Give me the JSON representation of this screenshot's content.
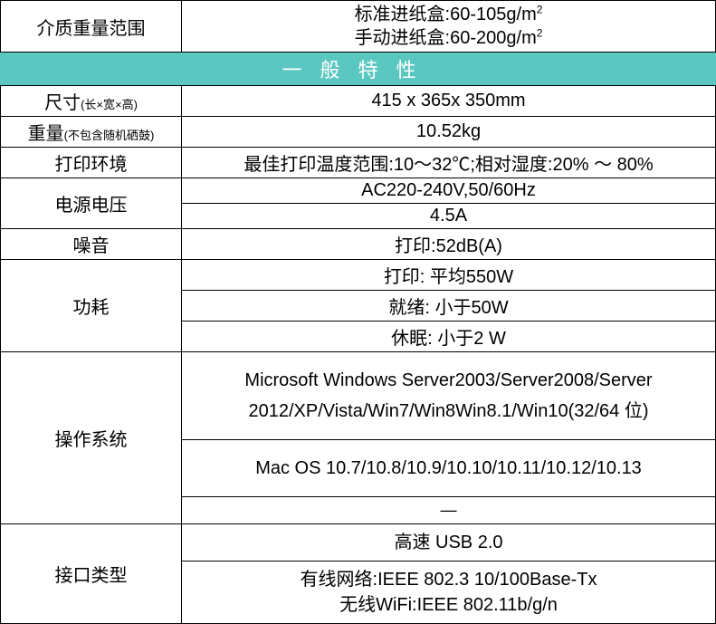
{
  "colors": {
    "border": "#000000",
    "header_bg": "#5bc7c1",
    "header_text": "#ffffff",
    "text": "#000000",
    "background": "#ffffff"
  },
  "layout": {
    "label_col_width": 200,
    "total_width": 791,
    "font_size_normal": 20,
    "font_size_sub": 13,
    "font_size_header": 22
  },
  "rows": {
    "media_weight": {
      "label": "介质重量范围",
      "value_line1_prefix": "标准进纸盒:60-105g/m",
      "value_line1_sup": "2",
      "value_line2_prefix": "手动进纸盒:60-200g/m",
      "value_line2_sup": "2"
    },
    "section_header": "一般特性",
    "dimensions": {
      "label_main": "尺寸",
      "label_sub": "(长×宽×高)",
      "value": "415 x 365x 350mm"
    },
    "weight": {
      "label_main": "重量",
      "label_sub": "(不包含随机硒鼓)",
      "value": "10.52kg"
    },
    "print_env": {
      "label": "打印环境",
      "value": "最佳打印温度范围:10～32℃;相对湿度:20% ～ 80%"
    },
    "power": {
      "label": "电源电压",
      "value1": "AC220-240V,50/60Hz",
      "value2": "4.5A"
    },
    "noise": {
      "label": "噪音",
      "value": "打印:52dB(A)"
    },
    "consumption": {
      "label": "功耗",
      "value1": "打印: 平均550W",
      "value2": "就绪: 小于50W",
      "value3": "休眠: 小于2 W"
    },
    "os": {
      "label": "操作系统",
      "windows": "Microsoft Windows Server2003/Server2008/Server 2012/XP/Vista/Win7/Win8Win8.1/Win10(32/64 位)",
      "mac": "Mac OS 10.7/10.8/10.9/10.10/10.11/10.12/10.13",
      "dash": "—"
    },
    "interface": {
      "label": "接口类型",
      "usb": "高速 USB 2.0",
      "wired": "有线网络:IEEE 802.3 10/100Base-Tx",
      "wifi": "无线WiFi:IEEE 802.11b/g/n"
    }
  }
}
